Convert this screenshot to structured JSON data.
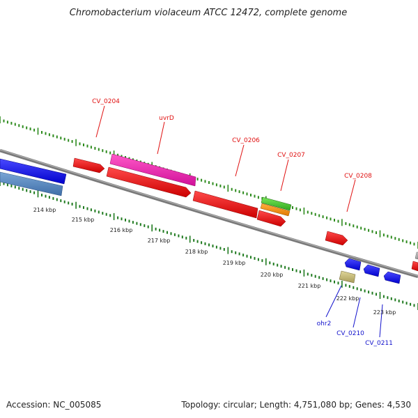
{
  "title": "Chromobacterium violaceum ATCC 12472, complete genome",
  "footer": {
    "accession": "Accession: NC_005085",
    "summary": "Topology: circular; Length: 4,751,080 bp; Genes: 4,530"
  },
  "colors": {
    "backbone": "#7a7a7a",
    "forward_tick": "#2e8b1e",
    "reverse_tick": "#1f7a1f",
    "forward_label": "#e01010",
    "reverse_label": "#1010cc"
  },
  "kbp_labels": [
    "214 kbp",
    "215 kbp",
    "216 kbp",
    "217 kbp",
    "218 kbp",
    "219 kbp",
    "220 kbp",
    "221 kbp",
    "222 kbp",
    "223 kbp"
  ],
  "gene_labels": {
    "forward": [
      "CV_0204",
      "uvrD",
      "CV_0206",
      "CV_0207",
      "CV_0208"
    ],
    "reverse": [
      "ohr2",
      "CV_0210",
      "CV_0211"
    ]
  }
}
